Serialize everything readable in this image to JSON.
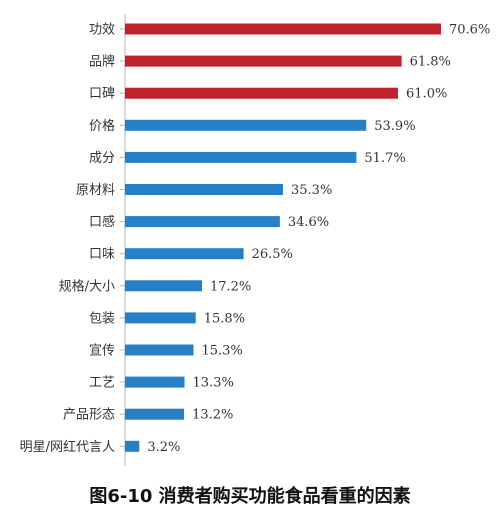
{
  "caption": "图6-10 消费者购买功能食品看重的因素",
  "chart_data": {
    "type": "bar",
    "orientation": "horizontal",
    "title": "",
    "xlabel": "",
    "ylabel": "",
    "categories": [
      "功效",
      "品牌",
      "口碑",
      "价格",
      "成分",
      "原材料",
      "口感",
      "口味",
      "规格/大小",
      "包装",
      "宣传",
      "工艺",
      "产品形态",
      "明星/网红代言人"
    ],
    "values": [
      70.6,
      61.8,
      61.0,
      53.9,
      51.7,
      35.3,
      34.6,
      26.5,
      17.2,
      15.8,
      15.3,
      13.3,
      13.2,
      3.2
    ],
    "value_labels": [
      "70.6%",
      "61.8%",
      "61.0%",
      "53.9%",
      "51.7%",
      "35.3%",
      "34.6%",
      "26.5%",
      "17.2%",
      "15.8%",
      "15.3%",
      "13.3%",
      "13.2%",
      "3.2%"
    ],
    "highlight_top_n": 3,
    "colors": {
      "highlight": "#c0222c",
      "normal": "#2580c8",
      "axis": "#b5b5b5"
    },
    "xlim": [
      0,
      80
    ],
    "grid": false
  }
}
